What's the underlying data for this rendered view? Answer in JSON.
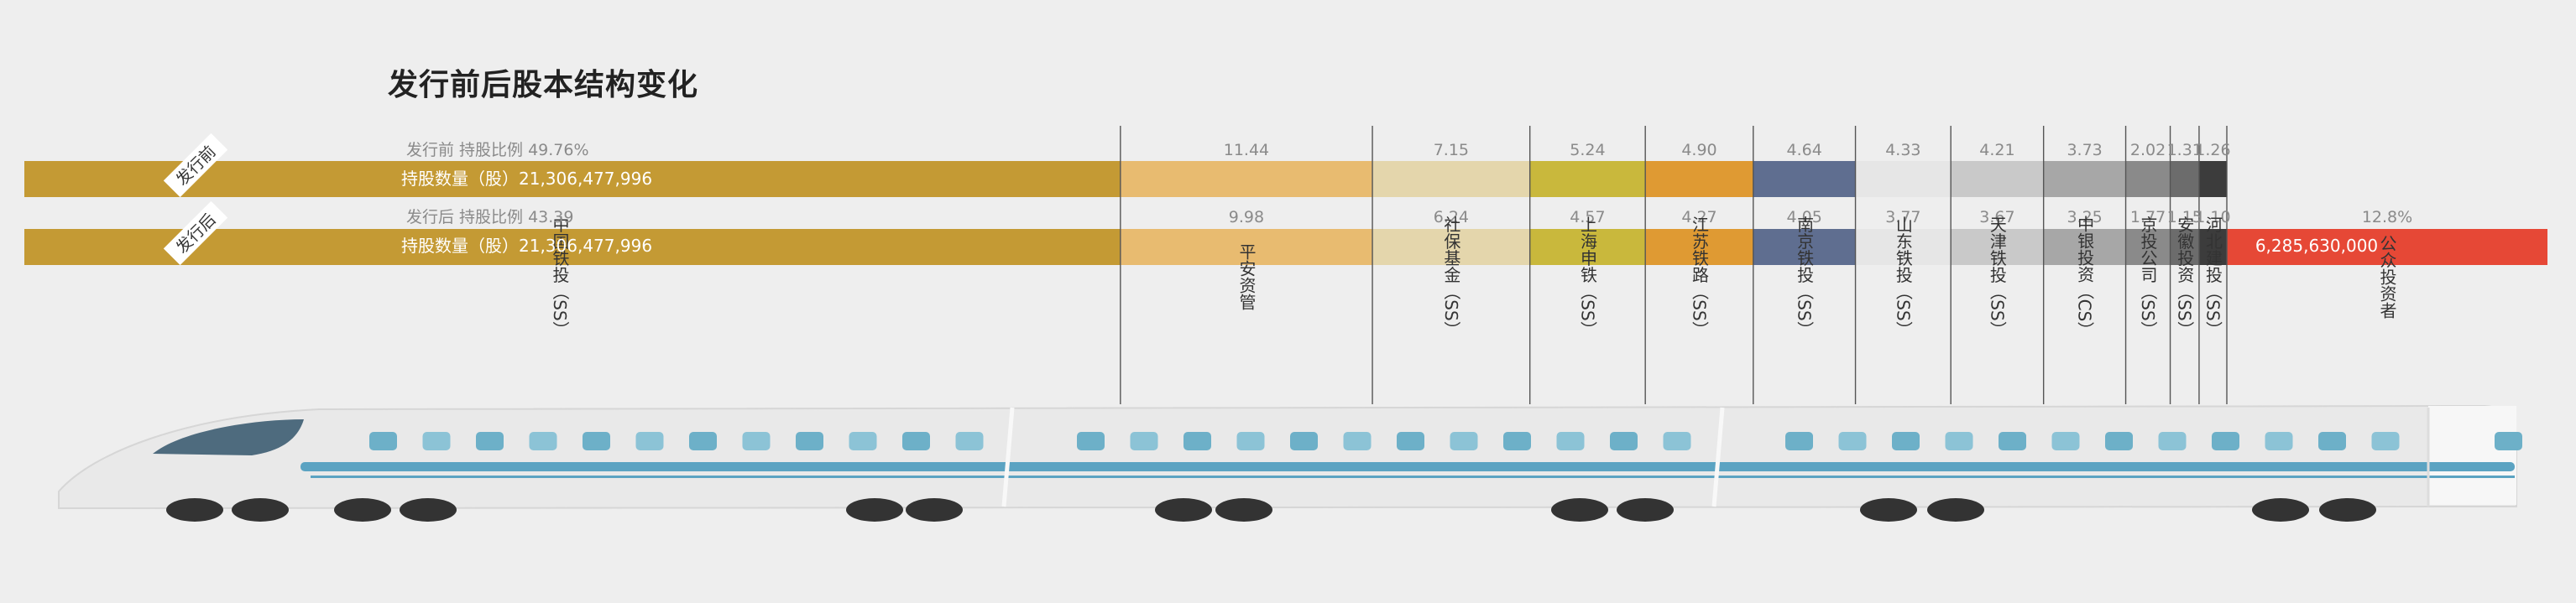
{
  "title": "发行前后股本结构变化",
  "rows": [
    {
      "tag": "发行前",
      "pct_label": "发行前 持股比例 49.76%",
      "shares_label": "持股数量（股）21,306,477,996"
    },
    {
      "tag": "发行后",
      "pct_label": "发行后 持股比例  43.39",
      "shares_label": "持股数量（股）21,306,477,996"
    }
  ],
  "chart_data": {
    "type": "bar",
    "title": "发行前后股本结构变化",
    "orientation": "horizontal-stacked",
    "categories": [
      "中国铁投（SS）",
      "平安资管",
      "社保基金（SS）",
      "上海申铁（SS）",
      "江苏铁路（SS）",
      "南京铁投（SS）",
      "山东铁投（SS）",
      "天津铁投（SS）",
      "中银投资（CS）",
      "京投公司（SS）",
      "安徽投资（SS）",
      "河北建投（SS）",
      "公众投资者"
    ],
    "series": [
      {
        "name": "发行前",
        "values": [
          49.76,
          11.44,
          7.15,
          5.24,
          4.9,
          4.64,
          4.33,
          4.21,
          3.73,
          2.02,
          1.31,
          1.26,
          0
        ]
      },
      {
        "name": "发行后",
        "values": [
          43.39,
          9.98,
          6.24,
          4.57,
          4.27,
          4.05,
          3.77,
          3.67,
          3.25,
          1.77,
          1.15,
          1.1,
          12.8
        ]
      }
    ],
    "labels_before": [
      "49.76%",
      "11.44",
      "7.15",
      "5.24",
      "4.90",
      "4.64",
      "4.33",
      "4.21",
      "3.73",
      "2.02",
      "1.31",
      "1.26",
      ""
    ],
    "labels_after": [
      "43.39",
      "9.98",
      "6.24",
      "4.57",
      "4.27",
      "4.05",
      "3.77",
      "3.67",
      "3.25",
      "1.77",
      "1.15",
      "1.10",
      "12.8%"
    ],
    "public_shares_label": "6,285,630,000",
    "colors": [
      "#c49a34",
      "#e8bb70",
      "#e4d6ac",
      "#c9b83c",
      "#df9a33",
      "#5f6e90",
      "#e6e6e6",
      "#c9c9c9",
      "#a7a7a7",
      "#8a8a8a",
      "#6c6c6c",
      "#3c3c3c",
      "#e64836"
    ]
  }
}
